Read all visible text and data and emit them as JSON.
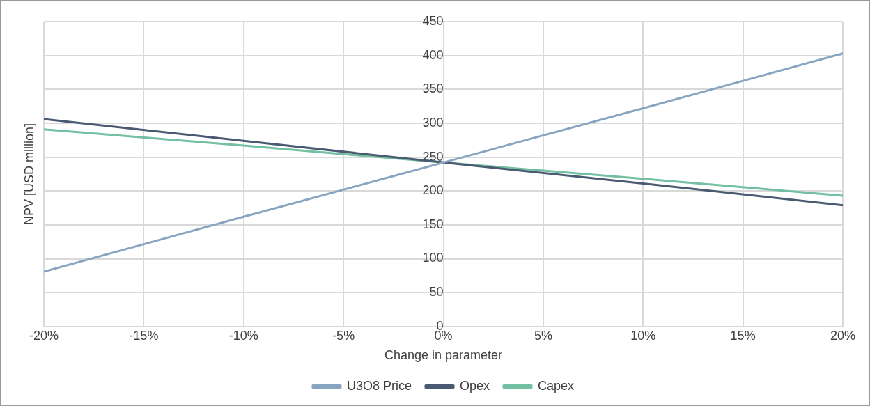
{
  "chart_data": {
    "type": "line",
    "xlabel": "Change in parameter",
    "ylabel": "NPV [USD million]",
    "x": [
      -20,
      -10,
      0,
      10,
      20
    ],
    "series": [
      {
        "name": "U3O8 Price",
        "color": "#87a5c0",
        "values": [
          81,
          162,
          242,
          322,
          403
        ]
      },
      {
        "name": "Opex",
        "color": "#4a5a72",
        "values": [
          306,
          274,
          242,
          211,
          179
        ]
      },
      {
        "name": "Capex",
        "color": "#72bfa2",
        "values": [
          291,
          267,
          242,
          218,
          193
        ]
      }
    ],
    "xlim": [
      -20,
      20
    ],
    "xticks": [
      {
        "value": -20,
        "label": "-20%"
      },
      {
        "value": -15,
        "label": "-15%"
      },
      {
        "value": -10,
        "label": "-10%"
      },
      {
        "value": -5,
        "label": "-5%"
      },
      {
        "value": 0,
        "label": "0%"
      },
      {
        "value": 5,
        "label": "5%"
      },
      {
        "value": 10,
        "label": "10%"
      },
      {
        "value": 15,
        "label": "15%"
      },
      {
        "value": 20,
        "label": "20%"
      }
    ],
    "ylim": [
      0,
      450
    ],
    "yticks": [
      0,
      50,
      100,
      150,
      200,
      250,
      300,
      350,
      400,
      450
    ],
    "grid": true,
    "legend": "bottom",
    "marker": "none",
    "line_style": "solid"
  }
}
